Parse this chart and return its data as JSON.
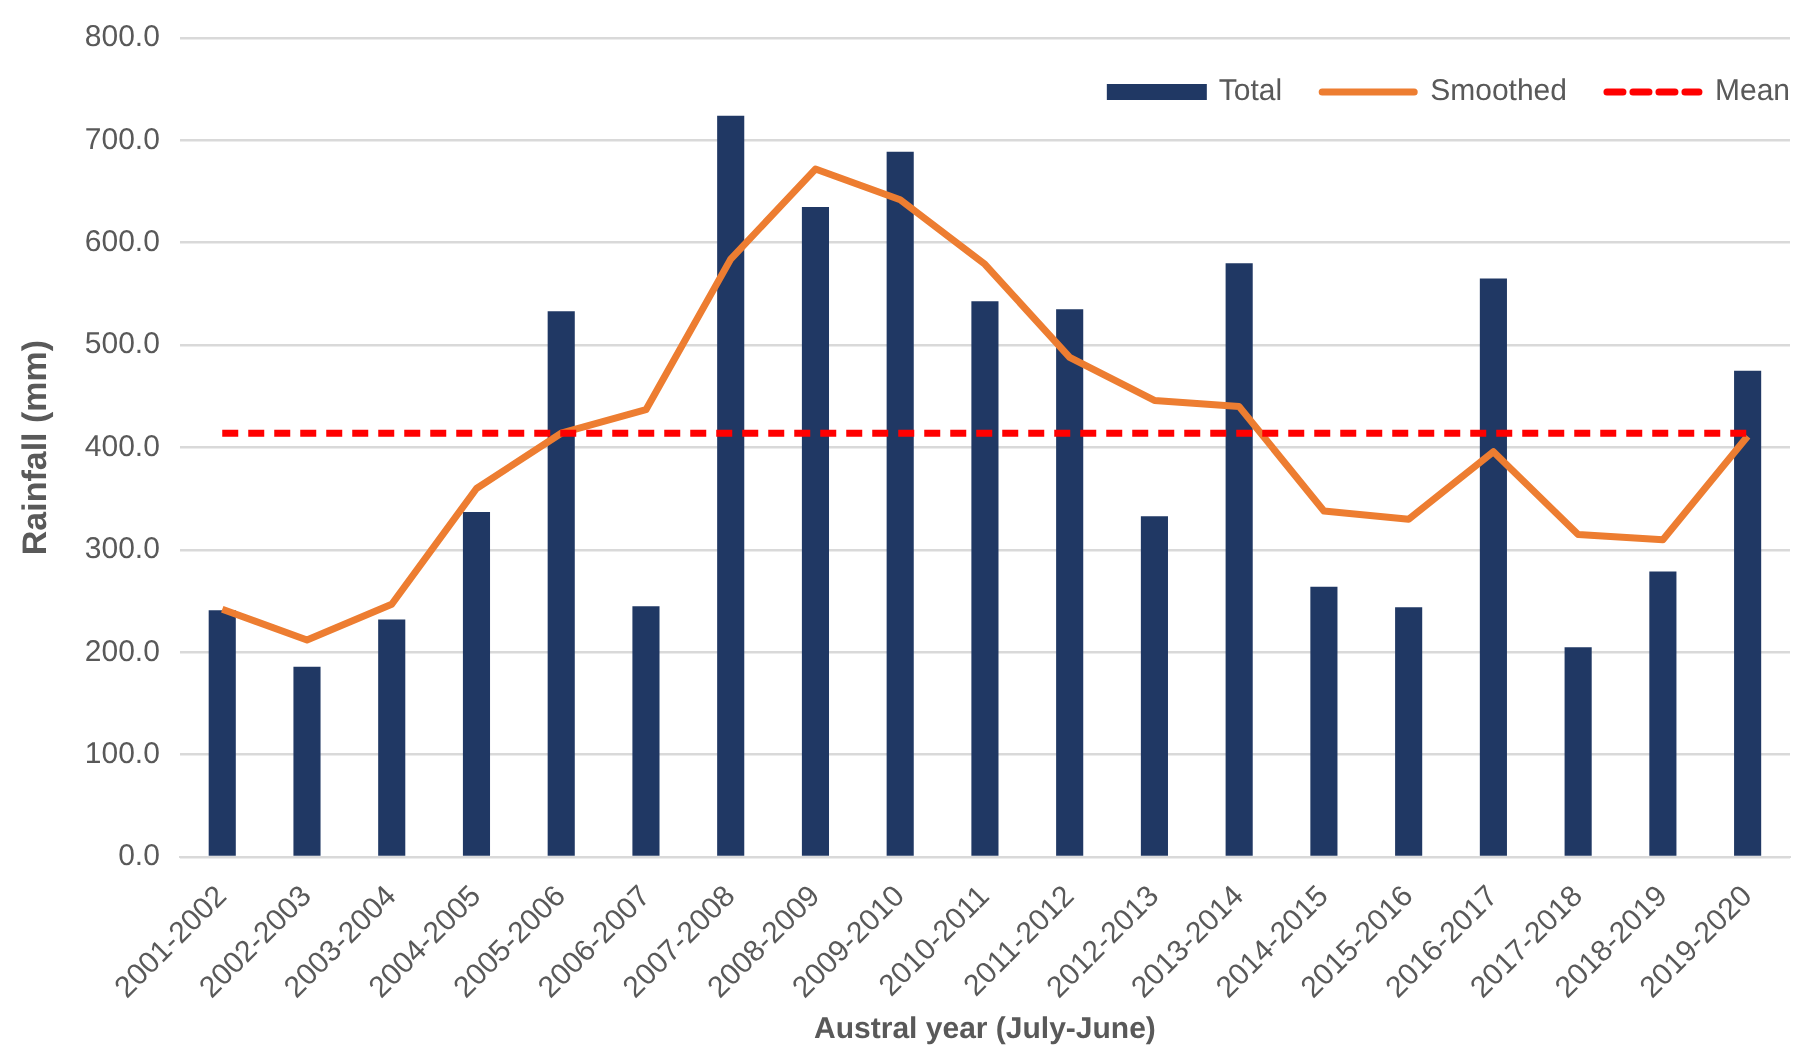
{
  "chart_data": {
    "type": "bar",
    "xlabel": "Austral year (July-June)",
    "ylabel": "Rainfall (mm)",
    "categories": [
      "2001-2002",
      "2002-2003",
      "2003-2004",
      "2004-2005",
      "2005-2006",
      "2006-2007",
      "2007-2008",
      "2008-2009",
      "2009-2010",
      "2010-2011",
      "2011-2012",
      "2012-2013",
      "2013-2014",
      "2014-2015",
      "2015-2016",
      "2016-2017",
      "2017-2018",
      "2018-2019",
      "2019-2020"
    ],
    "series": [
      {
        "name": "Total",
        "color": "#203864",
        "values": [
          241,
          186,
          232,
          337,
          533,
          245,
          724,
          635,
          689,
          543,
          535,
          333,
          580,
          264,
          244,
          565,
          205,
          279,
          475
        ]
      },
      {
        "name": "Smoothed",
        "type": "line",
        "color": "#ed7d31",
        "values": [
          242,
          212,
          247,
          360,
          414,
          437,
          584,
          672,
          642,
          579,
          488,
          446,
          440,
          338,
          330,
          396,
          315,
          310,
          411
        ]
      }
    ],
    "ref_lines": [
      {
        "axis": "y",
        "value": 414,
        "label": "Mean",
        "color": "#ff0000",
        "line_style": "dashed"
      }
    ],
    "ylim": [
      0,
      800
    ],
    "yticks": [
      {
        "value": 0,
        "label": "0.0"
      },
      {
        "value": 100,
        "label": "100.0"
      },
      {
        "value": 200,
        "label": "200.0"
      },
      {
        "value": 300,
        "label": "300.0"
      },
      {
        "value": 400,
        "label": "400.0"
      },
      {
        "value": 500,
        "label": "500.0"
      },
      {
        "value": 600,
        "label": "600.0"
      },
      {
        "value": 700,
        "label": "700.0"
      },
      {
        "value": 800,
        "label": "800.0"
      }
    ],
    "grid": "y",
    "legend": "top right",
    "marker": "none",
    "line_style": "solid"
  }
}
